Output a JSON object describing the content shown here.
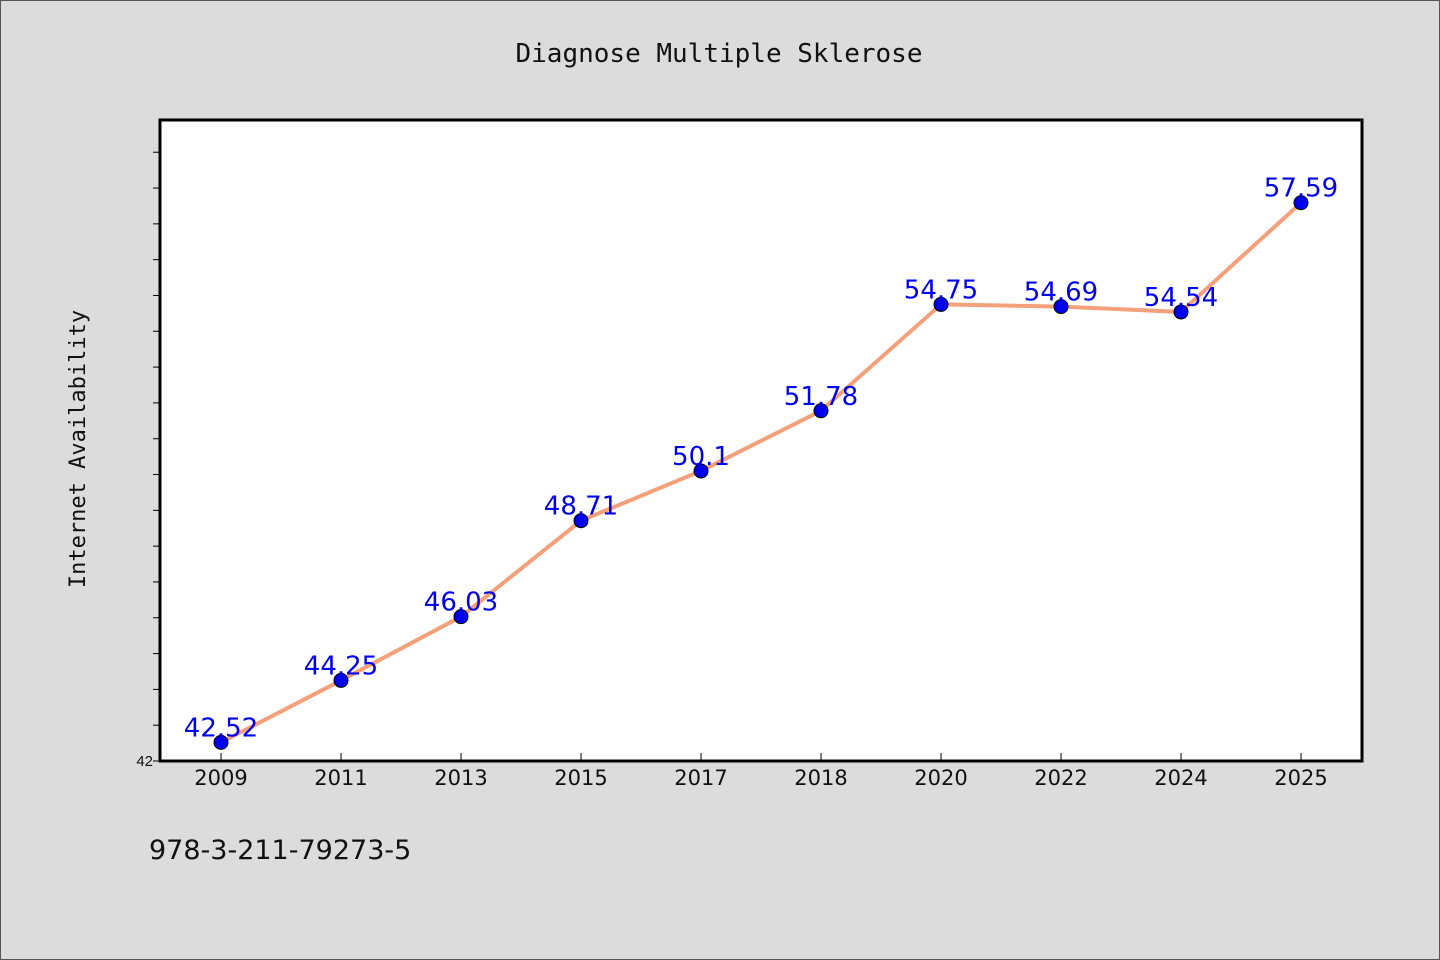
{
  "chart_data": {
    "type": "line",
    "title": "Diagnose Multiple Sklerose",
    "xlabel": "",
    "ylabel": "Internet Availability",
    "categories": [
      "2009",
      "2011",
      "2013",
      "2015",
      "2017",
      "2018",
      "2020",
      "2022",
      "2024",
      "2025"
    ],
    "series": [
      {
        "values": [
          42.52,
          44.25,
          46.03,
          48.71,
          50.1,
          51.78,
          54.75,
          54.69,
          54.54,
          57.59
        ],
        "line_color": "#f4a07a",
        "marker_color": "#0000ee",
        "label_color": "#0000ee"
      }
    ],
    "data_labels": [
      "42.52",
      "44.25",
      "46.03",
      "48.71",
      "50.1",
      "51.78",
      "54.75",
      "54.69",
      "54.54",
      "57.59"
    ],
    "y_tick_labels": [
      "42"
    ],
    "ylim": [
      42,
      59.9
    ],
    "grid": false,
    "legend": "none"
  },
  "footer": {
    "code": "978-3-211-79273-5"
  },
  "colors": {
    "figure_background": "#dcdcdc",
    "plot_background": "#ffffff",
    "axis": "#000000"
  }
}
